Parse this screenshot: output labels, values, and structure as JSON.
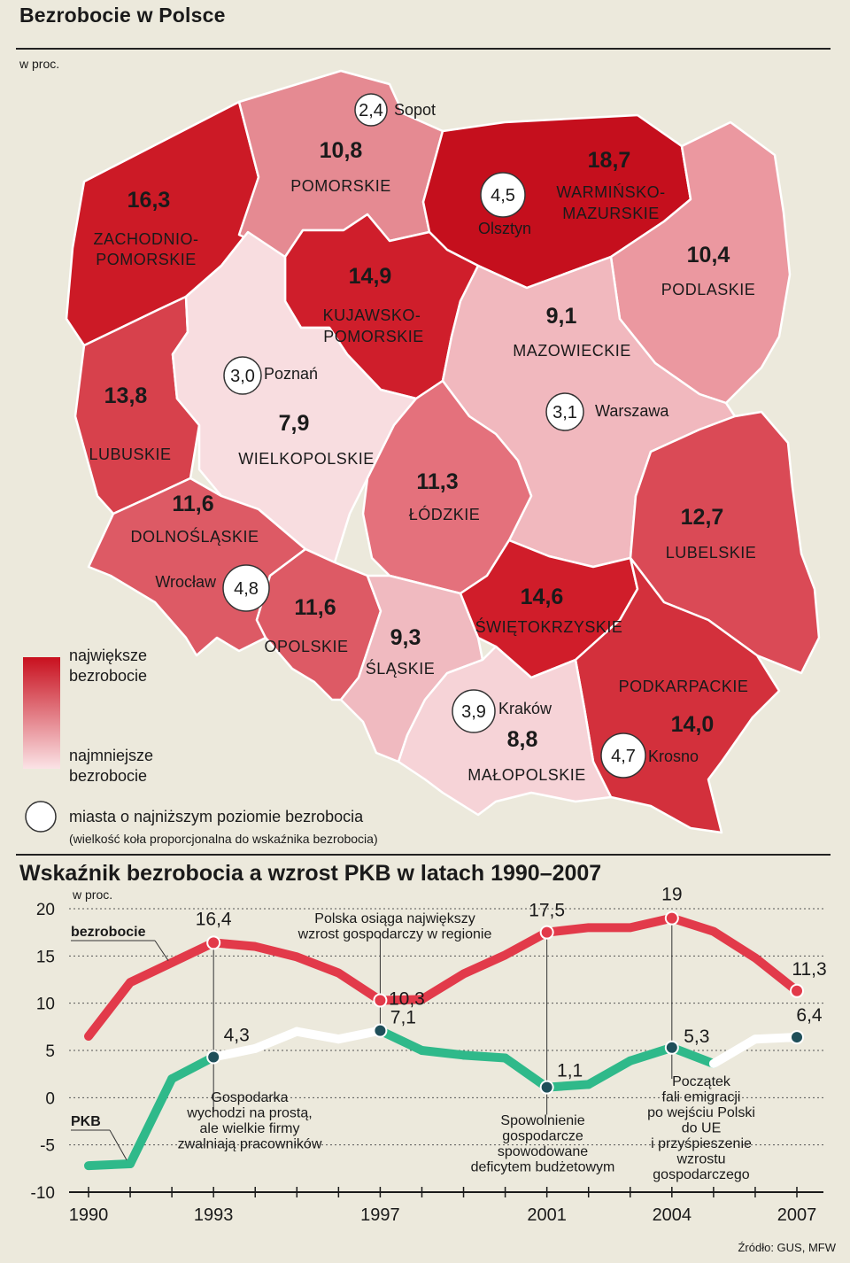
{
  "header": {
    "title": "Bezrobocie w Polsce",
    "unit": "w proc."
  },
  "map": {
    "regions": [
      {
        "id": "zachodniopomorskie",
        "name_lines": [
          "ZACHODNIO-",
          "POMORSKIE"
        ],
        "value": "16,3",
        "color": "#cc1a26"
      },
      {
        "id": "pomorskie",
        "name_lines": [
          "POMORSKIE"
        ],
        "value": "10,8",
        "color": "#e58a92"
      },
      {
        "id": "warminsko",
        "name_lines": [
          "WARMIŃSKO-",
          "MAZURSKIE"
        ],
        "value": "18,7",
        "color": "#c50f1d"
      },
      {
        "id": "podlaskie",
        "name_lines": [
          "PODLASKIE"
        ],
        "value": "10,4",
        "color": "#eb98a0"
      },
      {
        "id": "kujawsko",
        "name_lines": [
          "KUJAWSKO-",
          "POMORSKIE"
        ],
        "value": "14,9",
        "color": "#cf1e2b"
      },
      {
        "id": "lubuskie",
        "name_lines": [
          "LUBUSKIE"
        ],
        "value": "13,8",
        "color": "#d7414c"
      },
      {
        "id": "wielkopolskie",
        "name_lines": [
          "WIELKOPOLSKIE"
        ],
        "value": "7,9",
        "color": "#f8dde0"
      },
      {
        "id": "mazowieckie",
        "name_lines": [
          "MAZOWIECKIE"
        ],
        "value": "9,1",
        "color": "#f1b8be"
      },
      {
        "id": "lodzkie",
        "name_lines": [
          "ŁÓDZKIE"
        ],
        "value": "11,3",
        "color": "#e4717c"
      },
      {
        "id": "dolnoslaskie",
        "name_lines": [
          "DOLNOŚLĄSKIE"
        ],
        "value": "11,6",
        "color": "#dd5a65"
      },
      {
        "id": "lubelskie",
        "name_lines": [
          "LUBELSKIE"
        ],
        "value": "12,7",
        "color": "#da4a56"
      },
      {
        "id": "opolskie",
        "name_lines": [
          "OPOLSKIE"
        ],
        "value": "11,6",
        "color": "#dd5a65"
      },
      {
        "id": "slaskie",
        "name_lines": [
          "ŚLĄSKIE"
        ],
        "value": "9,3",
        "color": "#f0bac0"
      },
      {
        "id": "swietokrzyskie",
        "name_lines": [
          "ŚWIĘTOKRZYSKIE"
        ],
        "value": "14,6",
        "color": "#d01d2a"
      },
      {
        "id": "podkarpackie",
        "name_lines": [
          "PODKARPACKIE"
        ],
        "value": "14,0",
        "color": "#d3303c"
      },
      {
        "id": "malopolskie",
        "name_lines": [
          "MAŁOPOLSKIE"
        ],
        "value": "8,8",
        "color": "#f6d3d7"
      }
    ],
    "cities": [
      {
        "name": "Sopot",
        "value": "2,4"
      },
      {
        "name": "Olsztyn",
        "value": "4,5"
      },
      {
        "name": "Poznań",
        "value": "3,0"
      },
      {
        "name": "Warszawa",
        "value": "3,1"
      },
      {
        "name": "Wrocław",
        "value": "4,8"
      },
      {
        "name": "Kraków",
        "value": "3,9"
      },
      {
        "name": "Krosno",
        "value": "4,7"
      }
    ],
    "legend": {
      "top_label": "największe bezrobocie",
      "bottom_label": "najmniejsze bezrobocie",
      "circle_label": "miasta o najniższym poziomie bezrobocia",
      "circle_note": "(wielkość koła proporcjonalna do wskaźnika bezrobocia)",
      "gradient_top": "#c8101e",
      "gradient_bottom": "#fbe3e6"
    }
  },
  "chart_title": "Wskaźnik bezrobocia a wzrost PKB w latach 1990–2007",
  "chart_data": {
    "type": "line",
    "ylabel": "w proc.",
    "ylim": [
      -10,
      20
    ],
    "yticks": [
      20,
      15,
      10,
      5,
      0,
      -5,
      -10
    ],
    "xticks": [
      1990,
      1993,
      1997,
      2001,
      2004,
      2007
    ],
    "x": [
      1990,
      1991,
      1992,
      1993,
      1994,
      1995,
      1996,
      1997,
      1998,
      1999,
      2000,
      2001,
      2002,
      2003,
      2004,
      2005,
      2006,
      2007
    ],
    "series": [
      {
        "name": "bezrobocie",
        "color": "#e23a4a",
        "values": [
          6.5,
          12.2,
          14.3,
          16.4,
          16.0,
          14.9,
          13.2,
          10.3,
          10.4,
          13.1,
          15.1,
          17.5,
          18.0,
          18.0,
          19.0,
          17.6,
          14.8,
          11.3
        ]
      },
      {
        "name": "PKB",
        "color": "#2fb98a",
        "color_alt": "#ffffff",
        "values": [
          -7.2,
          -7.0,
          2.0,
          4.3,
          5.2,
          7.0,
          6.2,
          7.1,
          5.0,
          4.5,
          4.2,
          1.1,
          1.4,
          3.9,
          5.3,
          3.6,
          6.2,
          6.4
        ]
      }
    ],
    "point_labels": [
      {
        "series": "bezrobocie",
        "x": 1993,
        "text": "16,4"
      },
      {
        "series": "bezrobocie",
        "x": 1997,
        "text": "10,3"
      },
      {
        "series": "bezrobocie",
        "x": 2001,
        "text": "17,5"
      },
      {
        "series": "bezrobocie",
        "x": 2004,
        "text": "19"
      },
      {
        "series": "bezrobocie",
        "x": 2007,
        "text": "11,3"
      },
      {
        "series": "PKB",
        "x": 1993,
        "text": "4,3"
      },
      {
        "series": "PKB",
        "x": 1997,
        "text": "7,1"
      },
      {
        "series": "PKB",
        "x": 2001,
        "text": "1,1"
      },
      {
        "series": "PKB",
        "x": 2004,
        "text": "5,3"
      },
      {
        "series": "PKB",
        "x": 2007,
        "text": "6,4"
      }
    ],
    "annotations": [
      {
        "x": 1993,
        "lines": [
          "Gospodarka",
          "wychodzi na prostą,",
          "ale wielkie firmy",
          "zwalniają pracowników"
        ]
      },
      {
        "x": 1997,
        "lines": [
          "Polska osiąga największy",
          "wzrost gospodarczy w regionie"
        ]
      },
      {
        "x": 2001,
        "lines": [
          "Spowolnienie",
          "gospodarcze",
          "spowodowane",
          "deficytem budżetowym"
        ]
      },
      {
        "x": 2004,
        "lines": [
          "Początek",
          "fali emigracji",
          "po wejściu Polski",
          "do UE",
          "i przyśpieszenie",
          "wzrostu",
          "gospodarczego"
        ]
      }
    ]
  },
  "source": "Źródło: GUS, MFW"
}
